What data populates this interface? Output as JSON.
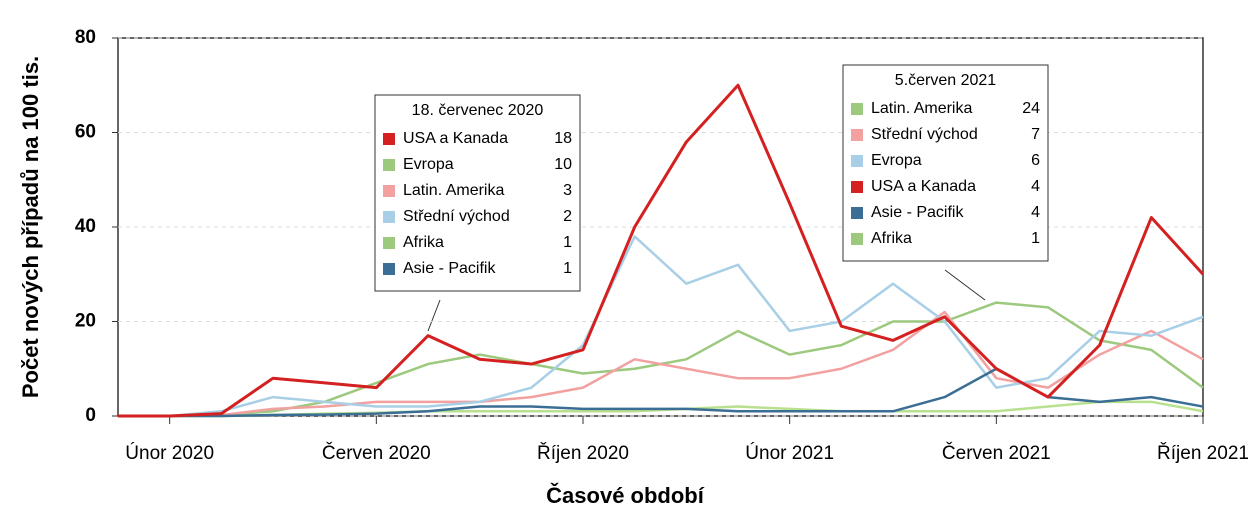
{
  "chart_data": {
    "type": "line",
    "x_label": "Časové období",
    "y_label": "Počet nových případů na 100 tis.",
    "x": [
      "2020-01",
      "2020-02",
      "2020-03",
      "2020-04",
      "2020-05",
      "2020-06",
      "2020-07",
      "2020-08",
      "2020-09",
      "2020-10",
      "2020-11",
      "2020-12",
      "2021-01",
      "2021-02",
      "2021-03",
      "2021-04",
      "2021-05",
      "2021-06",
      "2021-07",
      "2021-08",
      "2021-09",
      "2021-10"
    ],
    "xlim": [
      "2020-01",
      "2021-10"
    ],
    "xticks": [
      {
        "value": "2020-02",
        "label": "Únor 2020"
      },
      {
        "value": "2020-06",
        "label": "Červen 2020"
      },
      {
        "value": "2020-10",
        "label": "Říjen 2020"
      },
      {
        "value": "2021-02",
        "label": "Únor 2021"
      },
      {
        "value": "2021-06",
        "label": "Červen 2021"
      },
      {
        "value": "2021-10",
        "label": "Říjen 2021"
      }
    ],
    "ylim": [
      0,
      80
    ],
    "yticks": [
      0,
      20,
      40,
      60,
      80
    ],
    "grid": true,
    "series": [
      {
        "name": "Latin. Amerika",
        "color": "#9cc97e",
        "values": [
          0,
          0,
          0.2,
          1,
          3,
          7,
          11,
          13,
          11,
          9,
          10,
          12,
          18,
          13,
          15,
          20,
          20,
          24,
          23,
          16,
          14,
          6
        ]
      },
      {
        "name": "Afrika",
        "color": "#b8e08e",
        "values": [
          0,
          0,
          0,
          0.2,
          0.5,
          0.7,
          1,
          1,
          1,
          1,
          1,
          1.5,
          2,
          1.5,
          1,
          1,
          1,
          1,
          2,
          3,
          3,
          1
        ]
      },
      {
        "name": "Střední východ",
        "color": "#f2a0a0",
        "values": [
          0,
          0,
          0.2,
          1.5,
          2,
          3,
          3,
          3,
          4,
          6,
          12,
          10,
          8,
          8,
          10,
          14,
          22,
          8,
          6,
          13,
          18,
          12
        ]
      },
      {
        "name": "Evropa",
        "color": "#a8cfe6",
        "values": [
          0,
          0,
          1,
          4,
          3,
          2,
          2,
          3,
          6,
          15,
          38,
          28,
          32,
          18,
          20,
          28,
          20,
          6,
          8,
          18,
          17,
          21
        ]
      },
      {
        "name": "Asie - Pacifik",
        "color": "#3b6e95",
        "values": [
          0,
          0,
          0,
          0.2,
          0.3,
          0.5,
          1,
          2,
          2,
          1.5,
          1.5,
          1.5,
          1,
          1,
          1,
          1,
          4,
          10,
          4,
          3,
          4,
          2
        ]
      },
      {
        "name": "USA a Kanada",
        "color": "#d42020",
        "values": [
          0,
          0,
          0.5,
          8,
          7,
          6,
          17,
          12,
          11,
          14,
          40,
          58,
          70,
          45,
          19,
          16,
          21,
          10,
          4,
          15,
          42,
          30
        ]
      }
    ],
    "annotations": [
      {
        "title": "18. červenec 2020",
        "items": [
          {
            "name": "USA a Kanada",
            "color": "#d42020",
            "value": 18
          },
          {
            "name": "Evropa",
            "color": "#9cc97e",
            "value": 10
          },
          {
            "name": "Latin. Amerika",
            "color": "#f2a0a0",
            "value": 3
          },
          {
            "name": "Střední východ",
            "color": "#a8cfe6",
            "value": 2
          },
          {
            "name": "Afrika",
            "color": "#9cc97e",
            "value": 1
          },
          {
            "name": "Asie - Pacifik",
            "color": "#3b6e95",
            "value": 1
          }
        ]
      },
      {
        "title": "5.červen 2021",
        "items": [
          {
            "name": "Latin. Amerika",
            "color": "#9cc97e",
            "value": 24
          },
          {
            "name": "Střední východ",
            "color": "#f2a0a0",
            "value": 7
          },
          {
            "name": "Evropa",
            "color": "#a8cfe6",
            "value": 6
          },
          {
            "name": "USA a Kanada",
            "color": "#d42020",
            "value": 4
          },
          {
            "name": "Asie - Pacifik",
            "color": "#3b6e95",
            "value": 4
          },
          {
            "name": "Afrika",
            "color": "#9cc97e",
            "value": 1
          }
        ]
      }
    ]
  }
}
